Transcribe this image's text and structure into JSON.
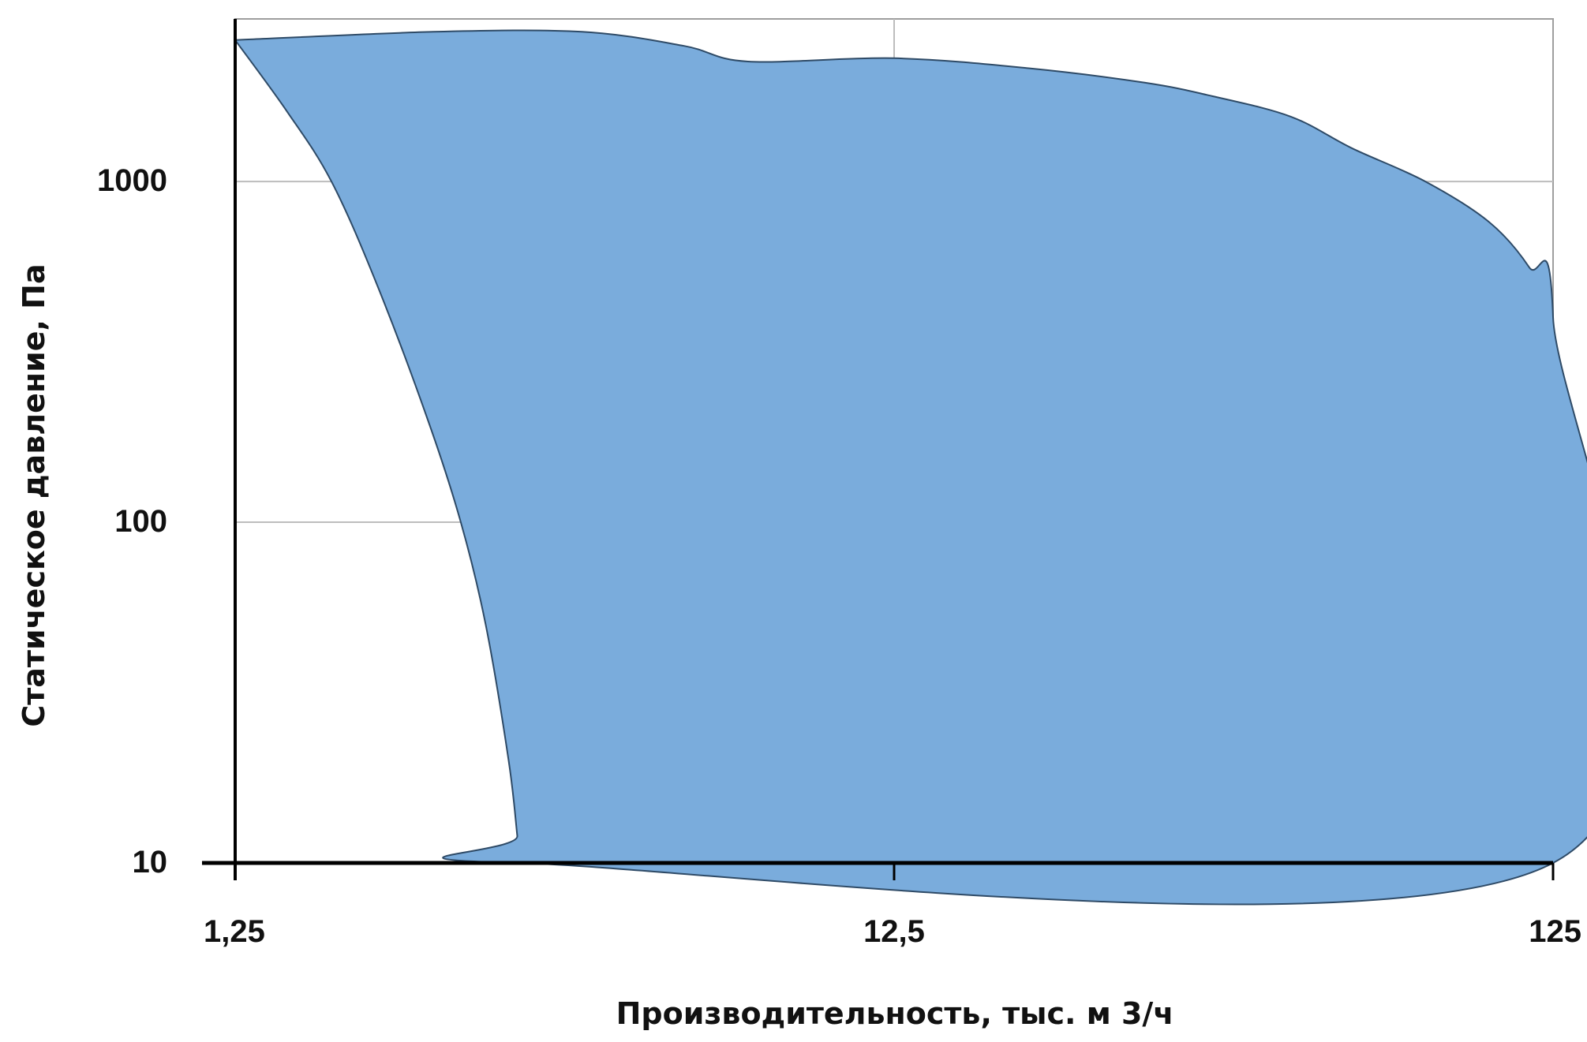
{
  "chart_data": {
    "type": "area",
    "title": "",
    "xlabel": "Производительность, тыс. м 3/ч",
    "ylabel": "Статическое давление, Па",
    "xscale": "log",
    "yscale": "log",
    "xlim": [
      1.25,
      125
    ],
    "ylim": [
      10,
      3000
    ],
    "grid": true,
    "legend": "none",
    "x_ticks": [
      {
        "value": 1.25,
        "label": "1,25"
      },
      {
        "value": 12.5,
        "label": "12,5"
      },
      {
        "value": 125,
        "label": "125"
      }
    ],
    "y_ticks": [
      {
        "value": 10,
        "label": "10"
      },
      {
        "value": 100,
        "label": "100"
      },
      {
        "value": 1000,
        "label": "1000"
      }
    ],
    "colors": {
      "fill": "#7aacdc",
      "outline": "#2e4a66",
      "grid": "#bdbdbd",
      "axis": "#000000"
    },
    "series": [
      {
        "upper_boundary": [
          {
            "x": 1.25,
            "y": 2600
          },
          {
            "x": 2.5,
            "y": 2750
          },
          {
            "x": 4.2,
            "y": 2750
          },
          {
            "x": 6.0,
            "y": 2500
          },
          {
            "x": 7.5,
            "y": 2250
          },
          {
            "x": 12.5,
            "y": 2300
          },
          {
            "x": 20.0,
            "y": 2150
          },
          {
            "x": 30.0,
            "y": 1950
          },
          {
            "x": 38.0,
            "y": 1780
          },
          {
            "x": 50.0,
            "y": 1550
          },
          {
            "x": 62.0,
            "y": 1250
          },
          {
            "x": 80.0,
            "y": 1000
          },
          {
            "x": 100.0,
            "y": 760
          },
          {
            "x": 115.0,
            "y": 560
          },
          {
            "x": 125.0,
            "y": 400
          },
          {
            "x": 125.0,
            "y": 10
          }
        ],
        "lower_boundary": [
          {
            "x": 1.25,
            "y": 2600
          },
          {
            "x": 1.5,
            "y": 1600
          },
          {
            "x": 1.75,
            "y": 1000
          },
          {
            "x": 2.05,
            "y": 500
          },
          {
            "x": 2.45,
            "y": 200
          },
          {
            "x": 2.75,
            "y": 100
          },
          {
            "x": 3.0,
            "y": 50
          },
          {
            "x": 3.25,
            "y": 20
          },
          {
            "x": 3.35,
            "y": 12
          },
          {
            "x": 3.38,
            "y": 10
          }
        ]
      }
    ]
  }
}
